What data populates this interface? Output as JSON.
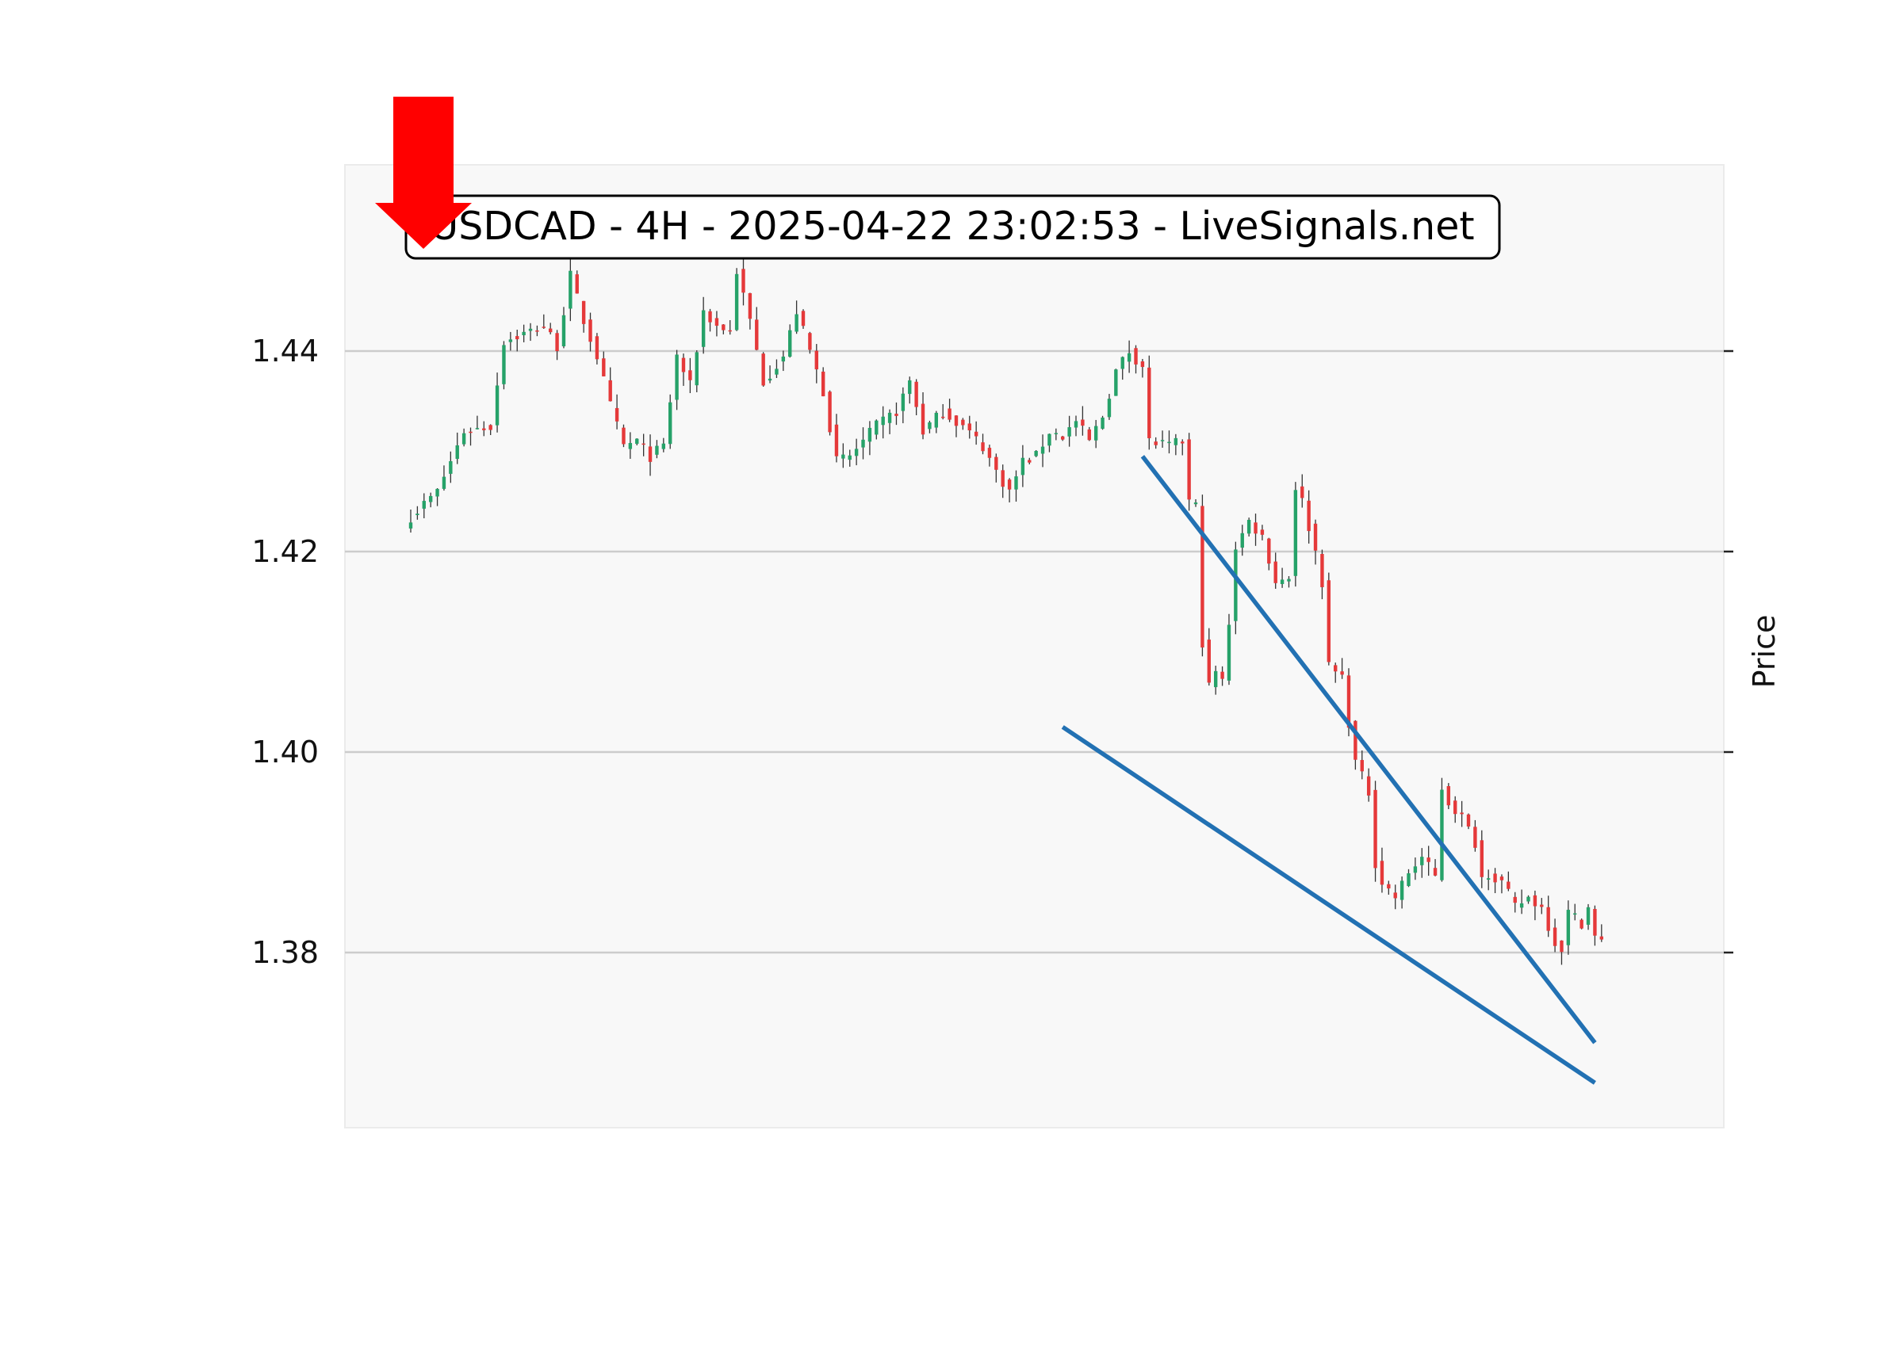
{
  "chart_data": {
    "type": "candlestick",
    "title": "USDCAD - 4H - 2025-04-22 23:02:53 - LiveSignals.net",
    "symbol": "USDCAD",
    "timeframe": "4H",
    "timestamp": "2025-04-22 23:02:53",
    "source": "LiveSignals.net",
    "ylabel": "Price",
    "xlabel": "",
    "y_axis_position": "right-label",
    "ylim": [
      1.3615,
      1.4577
    ],
    "yticks": [
      1.38,
      1.4,
      1.42,
      1.44
    ],
    "ytick_labels": [
      "1.38",
      "1.40",
      "1.42",
      "1.44"
    ],
    "grid": "horizontal",
    "colors": {
      "up": "#26a269",
      "down": "#e5393a",
      "wick": "#333333",
      "trendline": "#2271b3",
      "arrow": "#ff0000",
      "plot_bg": "#f8f8f8",
      "grid": "#cccccc"
    },
    "signal": {
      "type": "sell-arrow",
      "direction": "down",
      "bar_index": 1
    },
    "trendlines": [
      {
        "name": "upper",
        "x": [
          110,
          178
        ],
        "y": [
          1.4295,
          1.371
        ]
      },
      {
        "name": "lower",
        "x": [
          98,
          178
        ],
        "y": [
          1.4025,
          1.367
        ]
      }
    ],
    "n_bars": 180,
    "ohlc_anchors": [
      [
        0,
        1.4235
      ],
      [
        4,
        1.426
      ],
      [
        8,
        1.432
      ],
      [
        12,
        1.4325
      ],
      [
        14,
        1.441
      ],
      [
        18,
        1.442
      ],
      [
        20,
        1.4425
      ],
      [
        22,
        1.4405
      ],
      [
        24,
        1.4475
      ],
      [
        26,
        1.443
      ],
      [
        28,
        1.4395
      ],
      [
        30,
        1.4345
      ],
      [
        32,
        1.4305
      ],
      [
        34,
        1.431
      ],
      [
        36,
        1.4295
      ],
      [
        38,
        1.4305
      ],
      [
        40,
        1.4395
      ],
      [
        42,
        1.4365
      ],
      [
        44,
        1.444
      ],
      [
        46,
        1.4425
      ],
      [
        48,
        1.442
      ],
      [
        49,
        1.448
      ],
      [
        51,
        1.443
      ],
      [
        53,
        1.437
      ],
      [
        56,
        1.4395
      ],
      [
        58,
        1.444
      ],
      [
        60,
        1.44
      ],
      [
        62,
        1.436
      ],
      [
        64,
        1.429
      ],
      [
        66,
        1.4295
      ],
      [
        68,
        1.431
      ],
      [
        70,
        1.4325
      ],
      [
        73,
        1.434
      ],
      [
        75,
        1.437
      ],
      [
        77,
        1.432
      ],
      [
        80,
        1.434
      ],
      [
        83,
        1.4325
      ],
      [
        86,
        1.4305
      ],
      [
        88,
        1.428
      ],
      [
        90,
        1.426
      ],
      [
        92,
        1.429
      ],
      [
        94,
        1.4295
      ],
      [
        96,
        1.432
      ],
      [
        98,
        1.4315
      ],
      [
        100,
        1.433
      ],
      [
        102,
        1.431
      ],
      [
        104,
        1.4335
      ],
      [
        106,
        1.438
      ],
      [
        108,
        1.44
      ],
      [
        110,
        1.4385
      ],
      [
        111,
        1.431
      ],
      [
        114,
        1.4305
      ],
      [
        116,
        1.431
      ],
      [
        117,
        1.425
      ],
      [
        118,
        1.4245
      ],
      [
        119,
        1.411
      ],
      [
        120,
        1.4065
      ],
      [
        121,
        1.408
      ],
      [
        122,
        1.407
      ],
      [
        123,
        1.413
      ],
      [
        124,
        1.4205
      ],
      [
        126,
        1.423
      ],
      [
        128,
        1.4215
      ],
      [
        130,
        1.417
      ],
      [
        132,
        1.4175
      ],
      [
        133,
        1.4265
      ],
      [
        134,
        1.425
      ],
      [
        136,
        1.42
      ],
      [
        137,
        1.417
      ],
      [
        138,
        1.4085
      ],
      [
        140,
        1.4075
      ],
      [
        141,
        1.403
      ],
      [
        142,
        1.399
      ],
      [
        144,
        1.396
      ],
      [
        145,
        1.389
      ],
      [
        146,
        1.387
      ],
      [
        148,
        1.3855
      ],
      [
        150,
        1.388
      ],
      [
        152,
        1.3895
      ],
      [
        154,
        1.3875
      ],
      [
        155,
        1.3965
      ],
      [
        156,
        1.395
      ],
      [
        158,
        1.3935
      ],
      [
        160,
        1.391
      ],
      [
        161,
        1.3875
      ],
      [
        162,
        1.388
      ],
      [
        164,
        1.387
      ],
      [
        166,
        1.3845
      ],
      [
        168,
        1.3855
      ],
      [
        170,
        1.3845
      ],
      [
        172,
        1.381
      ],
      [
        173,
        1.3805
      ],
      [
        174,
        1.384
      ],
      [
        176,
        1.383
      ],
      [
        177,
        1.3845
      ],
      [
        178,
        1.3815
      ],
      [
        179,
        1.381
      ]
    ]
  }
}
